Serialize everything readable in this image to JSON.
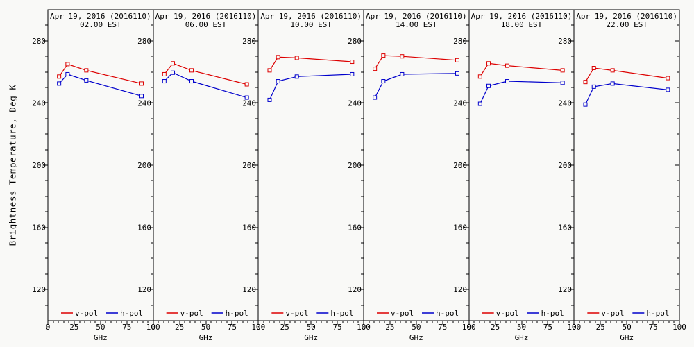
{
  "figure": {
    "ylabel": "Brightness Temperature, Deg K",
    "xlabel": "GHz",
    "colors": {
      "v_pol": "#dd0000",
      "h_pol": "#0000cc",
      "axis": "#000000",
      "background": "#f9f9f7"
    },
    "legend": [
      {
        "label": "v-pol",
        "color": "#dd0000"
      },
      {
        "label": "h-pol",
        "color": "#0000cc"
      }
    ],
    "axes": {
      "ylim": [
        100,
        300
      ],
      "xlim": [
        0,
        100
      ],
      "yticks": [
        120,
        160,
        200,
        240,
        280
      ],
      "y_minor_step": 10,
      "xticks": [
        0,
        25,
        50,
        75,
        100
      ],
      "x_minor_step": 5
    }
  },
  "chart_data": [
    {
      "type": "line",
      "title_line1": "Apr 19, 2016 (2016110)",
      "title_line2": "02.00 EST",
      "x": [
        10.65,
        18.7,
        36.5,
        89
      ],
      "series": [
        {
          "name": "v-pol",
          "color": "#dd0000",
          "values": [
            257.0,
            265.0,
            261.0,
            252.5
          ]
        },
        {
          "name": "h-pol",
          "color": "#0000cc",
          "values": [
            252.5,
            258.5,
            254.5,
            244.5
          ]
        }
      ]
    },
    {
      "type": "line",
      "title_line1": "Apr 19, 2016 (2016110)",
      "title_line2": "06.00 EST",
      "x": [
        10.65,
        18.7,
        36.5,
        89
      ],
      "series": [
        {
          "name": "v-pol",
          "color": "#dd0000",
          "values": [
            258.5,
            265.5,
            261.0,
            252.0
          ]
        },
        {
          "name": "h-pol",
          "color": "#0000cc",
          "values": [
            254.0,
            259.5,
            254.0,
            243.5
          ]
        }
      ]
    },
    {
      "type": "line",
      "title_line1": "Apr 19, 2016 (2016110)",
      "title_line2": "10.00 EST",
      "x": [
        10.65,
        18.7,
        36.5,
        89
      ],
      "series": [
        {
          "name": "v-pol",
          "color": "#dd0000",
          "values": [
            261.0,
            269.5,
            269.0,
            266.5
          ]
        },
        {
          "name": "h-pol",
          "color": "#0000cc",
          "values": [
            242.0,
            254.0,
            257.0,
            258.5
          ]
        }
      ]
    },
    {
      "type": "line",
      "title_line1": "Apr 19, 2016 (2016110)",
      "title_line2": "14.00 EST",
      "x": [
        10.65,
        18.7,
        36.5,
        89
      ],
      "series": [
        {
          "name": "v-pol",
          "color": "#dd0000",
          "values": [
            262.0,
            270.5,
            270.0,
            267.5
          ]
        },
        {
          "name": "h-pol",
          "color": "#0000cc",
          "values": [
            243.5,
            254.0,
            258.5,
            259.0
          ]
        }
      ]
    },
    {
      "type": "line",
      "title_line1": "Apr 19, 2016 (2016110)",
      "title_line2": "18.00 EST",
      "x": [
        10.65,
        18.7,
        36.5,
        89
      ],
      "series": [
        {
          "name": "v-pol",
          "color": "#dd0000",
          "values": [
            257.0,
            265.5,
            264.0,
            261.0
          ]
        },
        {
          "name": "h-pol",
          "color": "#0000cc",
          "values": [
            239.5,
            251.0,
            254.0,
            253.0
          ]
        }
      ]
    },
    {
      "type": "line",
      "title_line1": "Apr 19, 2016 (2016110)",
      "title_line2": "22.00 EST",
      "x": [
        10.65,
        18.7,
        36.5,
        89
      ],
      "series": [
        {
          "name": "v-pol",
          "color": "#dd0000",
          "values": [
            253.5,
            262.5,
            261.0,
            256.0
          ]
        },
        {
          "name": "h-pol",
          "color": "#0000cc",
          "values": [
            239.0,
            250.5,
            252.5,
            248.5
          ]
        }
      ]
    }
  ]
}
